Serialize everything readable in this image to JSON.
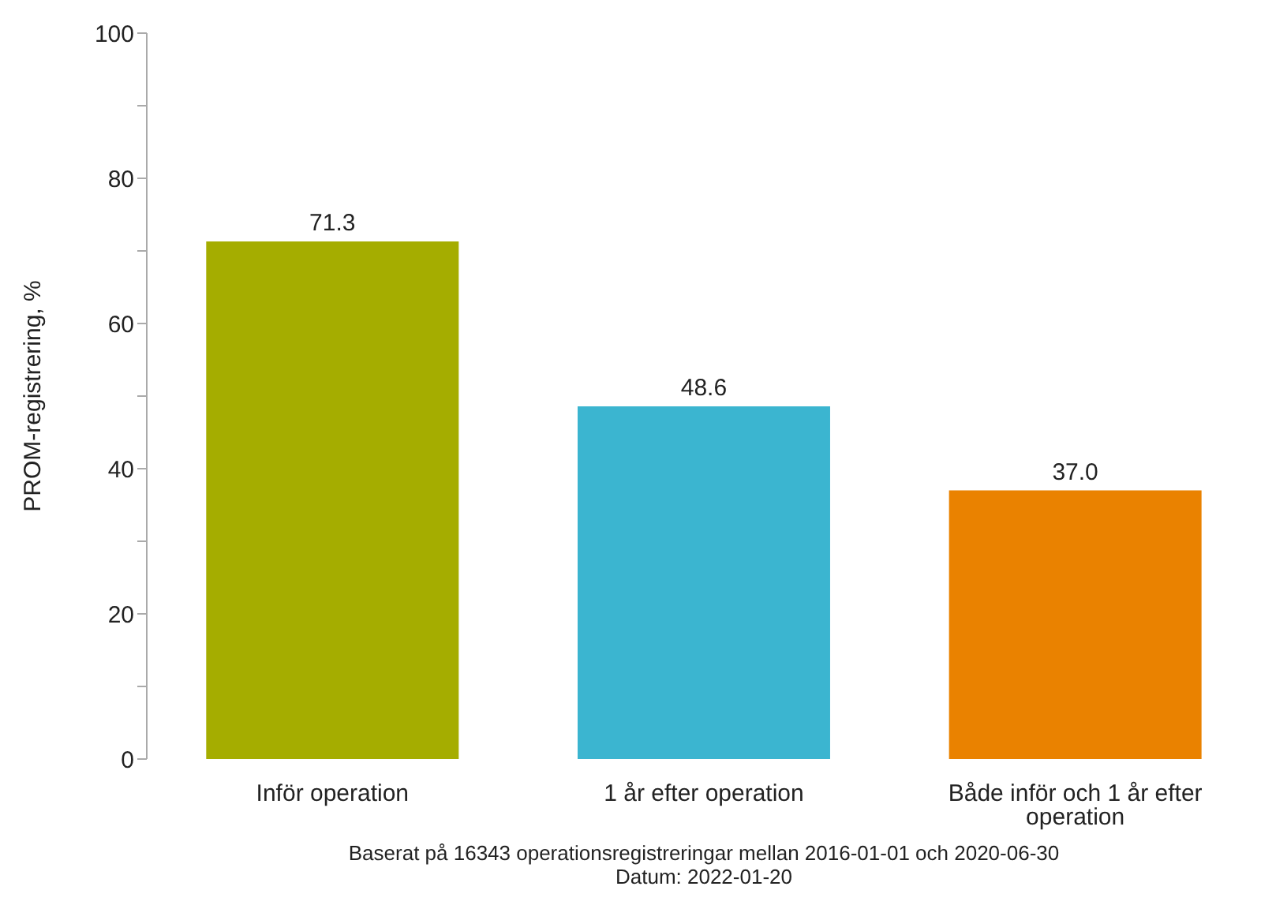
{
  "chart_data": {
    "type": "bar",
    "ylabel": "PROM-registrering, %",
    "categories": [
      "Inför operation",
      "1 år efter operation",
      "Både inför och 1 år efter operation"
    ],
    "values": [
      71.3,
      48.6,
      37.0
    ],
    "colors": [
      "#a5ad00",
      "#3bb5d0",
      "#ea8200"
    ],
    "value_labels": [
      "71.3",
      "48.6",
      "37.0"
    ],
    "ylim": [
      0,
      100
    ],
    "yticks": [
      0,
      {
        "value": 10,
        "label": null
      },
      20,
      {
        "value": 30,
        "label": null
      },
      40,
      {
        "value": 50,
        "label": null
      },
      60,
      {
        "value": 70,
        "label": null
      },
      80,
      {
        "value": 90,
        "label": null
      },
      100
    ],
    "annotations": [
      "Baserat på 16343 operationsregistreringar mellan 2016-01-01 och 2020-06-30",
      "Datum: 2022-01-20"
    ]
  }
}
